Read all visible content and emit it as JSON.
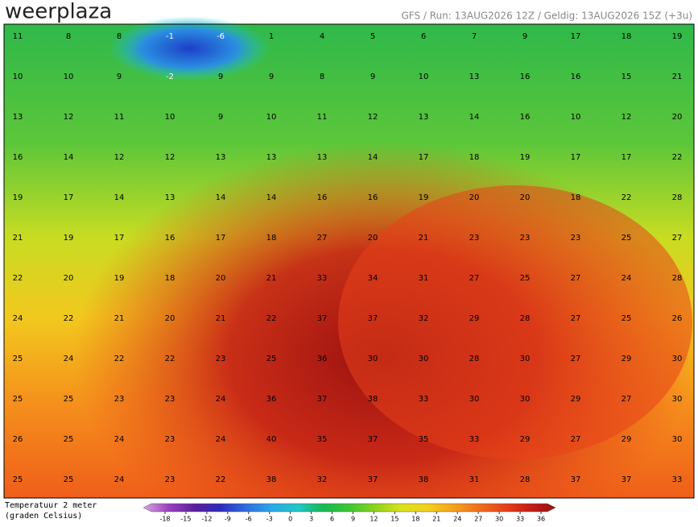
{
  "header": {
    "logo": "weerplaza",
    "run_info": "GFS / Run: 13AUG2026 12Z / Geldig: 13AUG2026 15Z (+3u)"
  },
  "map": {
    "temperature_labels": [
      [
        11,
        8,
        8,
        -1,
        -6,
        1,
        4,
        5,
        6,
        7,
        9,
        17,
        18,
        19
      ],
      [
        10,
        10,
        9,
        -2,
        9,
        9,
        8,
        9,
        10,
        13,
        16,
        16,
        15,
        21
      ],
      [
        13,
        12,
        11,
        10,
        9,
        10,
        11,
        12,
        13,
        14,
        16,
        10,
        12,
        20
      ],
      [
        16,
        14,
        12,
        12,
        13,
        13,
        13,
        14,
        17,
        18,
        19,
        17,
        17,
        22
      ],
      [
        19,
        17,
        14,
        13,
        14,
        14,
        16,
        16,
        19,
        20,
        20,
        18,
        22,
        28
      ],
      [
        21,
        19,
        17,
        16,
        17,
        18,
        27,
        20,
        21,
        23,
        23,
        23,
        25,
        27
      ],
      [
        22,
        20,
        19,
        18,
        20,
        21,
        33,
        34,
        31,
        27,
        25,
        27,
        24,
        28
      ],
      [
        24,
        22,
        21,
        20,
        21,
        22,
        37,
        37,
        32,
        29,
        28,
        27,
        25,
        26
      ],
      [
        25,
        24,
        22,
        22,
        23,
        25,
        36,
        30,
        30,
        28,
        30,
        27,
        29,
        30
      ],
      [
        25,
        25,
        23,
        23,
        24,
        36,
        37,
        38,
        33,
        30,
        30,
        29,
        27,
        30
      ],
      [
        26,
        25,
        24,
        23,
        24,
        40,
        35,
        37,
        35,
        33,
        29,
        27,
        29,
        30
      ],
      [
        25,
        25,
        24,
        23,
        22,
        38,
        32,
        37,
        38,
        31,
        28,
        37,
        37,
        33
      ]
    ]
  },
  "legend": {
    "title_line1": "Temperatuur 2 meter",
    "title_line2": "(graden Celsius)",
    "ticks": [
      -18,
      -15,
      -12,
      -9,
      -6,
      -3,
      0,
      3,
      6,
      9,
      12,
      15,
      18,
      21,
      24,
      27,
      30,
      33,
      36
    ],
    "colors": [
      "#d8a8e0",
      "#9b3fbf",
      "#5a1e9c",
      "#2b2bbf",
      "#2f6fe0",
      "#2aa8e8",
      "#20c8c8",
      "#17b84e",
      "#3bc832",
      "#8ed31c",
      "#d9e21a",
      "#f3d21c",
      "#f7a41b",
      "#f2701a",
      "#e8421a",
      "#c81e14",
      "#961010"
    ]
  }
}
